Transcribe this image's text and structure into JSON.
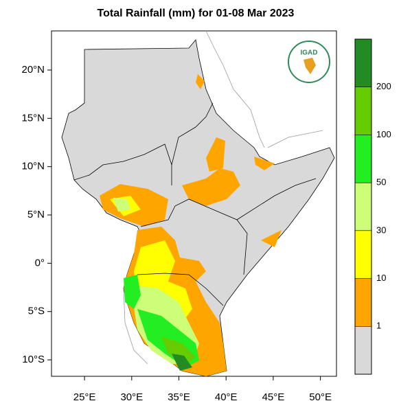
{
  "map": {
    "title": "Total Rainfall (mm) for 01-08 Mar 2023",
    "logo_text": "IGAD",
    "xlim": [
      21.5,
      51.7
    ],
    "ylim": [
      -11.7,
      24.05
    ],
    "lon_ticks": [
      {
        "value": 25,
        "label": "25°E"
      },
      {
        "value": 30,
        "label": "30°E"
      },
      {
        "value": 35,
        "label": "35°E"
      },
      {
        "value": 40,
        "label": "40°E"
      },
      {
        "value": 45,
        "label": "45°E"
      },
      {
        "value": 50,
        "label": "50°E"
      }
    ],
    "lat_ticks": [
      {
        "value": 20,
        "label": "20°N"
      },
      {
        "value": 15,
        "label": "15°N"
      },
      {
        "value": 10,
        "label": "10°N"
      },
      {
        "value": 5,
        "label": "5°N"
      },
      {
        "value": 0,
        "label": "0°"
      },
      {
        "value": -5,
        "label": "5°S"
      },
      {
        "value": -10,
        "label": "10°S"
      }
    ],
    "colorbar": {
      "levels": [
        1,
        10,
        30,
        50,
        100,
        200
      ],
      "colors": [
        "#d9d9d9",
        "#ffa500",
        "#ffff00",
        "#ccff77",
        "#22ee22",
        "#66cc00",
        "#228b22"
      ]
    }
  }
}
